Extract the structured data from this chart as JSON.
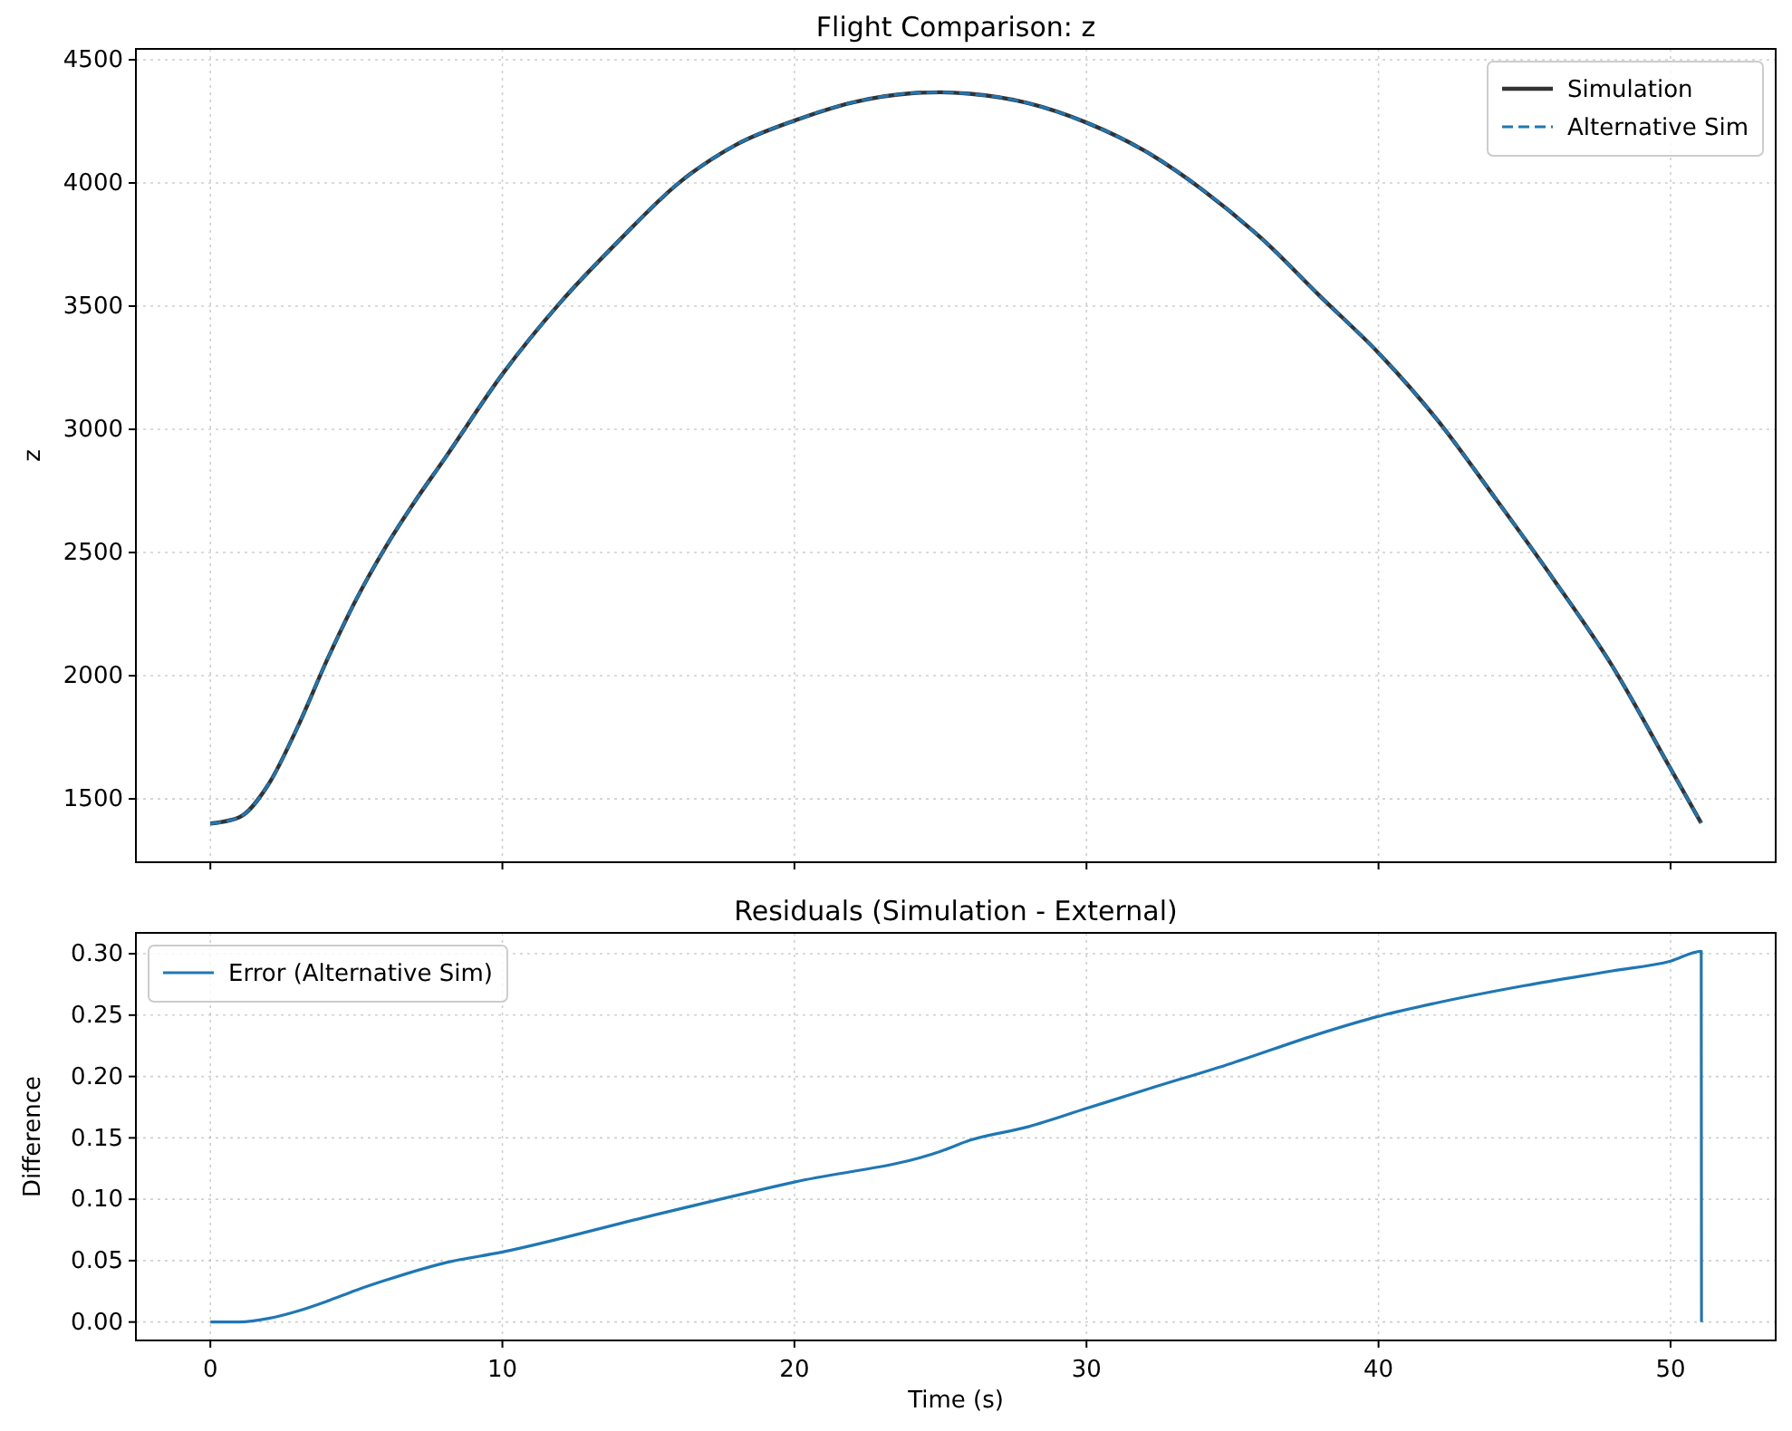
{
  "chart_data": [
    {
      "type": "line",
      "title": "Flight Comparison: z",
      "ylabel": "z",
      "xlim": [
        -2.55,
        53.6
      ],
      "ylim": [
        1243,
        4544
      ],
      "xticks": [
        0,
        10,
        20,
        30,
        40,
        50
      ],
      "yticks": [
        1500,
        2000,
        2500,
        3000,
        3500,
        4000,
        4500
      ],
      "tick_labels": "y",
      "grid": true,
      "legend": "top right",
      "x": [
        0,
        1,
        2,
        3,
        4,
        5,
        6,
        7,
        8,
        10,
        12,
        14,
        16,
        18,
        20,
        22,
        24,
        25,
        26,
        28,
        30,
        32,
        34,
        36,
        38,
        40,
        42,
        44,
        46,
        48,
        50,
        51.05
      ],
      "series": [
        {
          "name": "Simulation",
          "color": "#333333",
          "line_style": "solid",
          "values": [
            1400,
            1426,
            1561,
            1795,
            2065,
            2311,
            2522,
            2707,
            2877,
            3224,
            3517,
            3767,
            3996,
            4155,
            4253,
            4327,
            4364,
            4368,
            4362,
            4324,
            4245,
            4130,
            3970,
            3774,
            3540,
            3310,
            3040,
            2720,
            2390,
            2040,
            1623,
            1402
          ]
        },
        {
          "name": "Alternative Sim",
          "color": "#1f77b4",
          "line_style": "dashed",
          "values": [
            1400,
            1426,
            1561,
            1795,
            2065,
            2311,
            2522,
            2707,
            2877,
            3224,
            3517,
            3767,
            3996,
            4155,
            4253,
            4327,
            4364,
            4368,
            4362,
            4324,
            4245,
            4130,
            3970,
            3774,
            3540,
            3310,
            3040,
            2720,
            2390,
            2040,
            1623,
            1402
          ]
        }
      ]
    },
    {
      "type": "line",
      "title": "Residuals (Simulation - External)",
      "xlabel": "Time (s)",
      "ylabel": "Difference",
      "xlim": [
        -2.55,
        53.6
      ],
      "ylim": [
        -0.015,
        0.317
      ],
      "xticks": [
        0,
        10,
        20,
        30,
        40,
        50
      ],
      "yticks": [
        {
          "value": 0,
          "label": "0.00"
        },
        {
          "value": 0.05,
          "label": "0.05"
        },
        {
          "value": 0.1,
          "label": "0.10"
        },
        {
          "value": 0.15,
          "label": "0.15"
        },
        {
          "value": 0.2,
          "label": "0.20"
        },
        {
          "value": 0.25,
          "label": "0.25"
        },
        {
          "value": 0.3,
          "label": "0.30"
        }
      ],
      "grid": true,
      "legend": "top left",
      "x": [
        0,
        1,
        2,
        3,
        4,
        5,
        6,
        8,
        10,
        15,
        20,
        25,
        26,
        28,
        30,
        32,
        35,
        38,
        40,
        42,
        45,
        48,
        50,
        51.05,
        51.06
      ],
      "series": [
        {
          "name": "Error (Alternative Sim)",
          "color": "#1f77b4",
          "line_style": "solid",
          "values": [
            0,
            0,
            0.003,
            0.009,
            0.017,
            0.026,
            0.034,
            0.048,
            0.057,
            0.086,
            0.114,
            0.139,
            0.148,
            0.159,
            0.174,
            0.189,
            0.211,
            0.235,
            0.249,
            0.26,
            0.274,
            0.286,
            0.294,
            0.302,
            0
          ]
        }
      ]
    }
  ]
}
